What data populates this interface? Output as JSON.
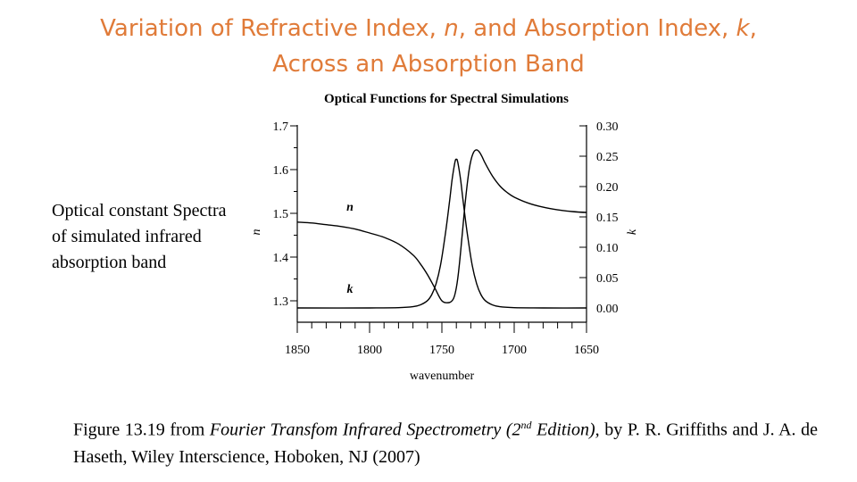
{
  "slide": {
    "title_line1_pre": "Variation of Refractive Index, ",
    "title_n": "n",
    "title_line1_mid": ", and Absorption Index, ",
    "title_k": "k",
    "title_line1_post": ",",
    "title_line2": "Across an Absorption Band",
    "side_note": "Optical constant Spectra of simulated infrared absorption band",
    "caption_pre": "Figure 13.19 from ",
    "caption_book": "Fourier Transfom Infrared Spectrometry (2",
    "caption_sup": "nd",
    "caption_book_post": " Edition),",
    "caption_post": " by P. R. Griffiths and J. A. de Haseth, Wiley Interscience, Hoboken, NJ (2007)"
  },
  "chart_data": {
    "type": "line",
    "title": "Optical Functions for Spectral Simulations",
    "xlabel": "wavenumber",
    "ylabel_left": "n",
    "ylabel_right": "k",
    "xlim": [
      1850,
      1650
    ],
    "ylim_left": [
      1.28,
      1.7
    ],
    "ylim_right": [
      0.0,
      0.3
    ],
    "x_ticks": [
      1850,
      1800,
      1750,
      1700,
      1650
    ],
    "x_tick_labels": [
      "1850",
      "1800",
      "1750",
      "1700",
      "1650"
    ],
    "y_left_ticks": [
      1.3,
      1.4,
      1.5,
      1.6,
      1.7
    ],
    "y_left_tick_labels": [
      "1.3",
      "1.4",
      "1.5",
      "1.6",
      "1.7"
    ],
    "y_right_ticks": [
      0.0,
      0.05,
      0.1,
      0.15,
      0.2,
      0.25,
      0.3
    ],
    "y_right_tick_labels": [
      "0.00",
      "0.05",
      "0.10",
      "0.15",
      "0.20",
      "0.25",
      "0.30"
    ],
    "grid": false,
    "series": [
      {
        "name": "n",
        "axis": "left",
        "x": [
          1850,
          1840,
          1830,
          1820,
          1810,
          1800,
          1790,
          1780,
          1770,
          1765,
          1760,
          1755,
          1750,
          1745,
          1742,
          1740,
          1738,
          1736,
          1734,
          1732,
          1730,
          1728,
          1726,
          1724,
          1722,
          1720,
          1715,
          1710,
          1705,
          1700,
          1690,
          1680,
          1670,
          1660,
          1650
        ],
        "y": [
          1.48,
          1.478,
          1.474,
          1.47,
          1.464,
          1.455,
          1.445,
          1.43,
          1.405,
          1.385,
          1.36,
          1.33,
          1.3,
          1.296,
          1.305,
          1.33,
          1.38,
          1.45,
          1.52,
          1.58,
          1.62,
          1.64,
          1.645,
          1.64,
          1.628,
          1.614,
          1.585,
          1.563,
          1.548,
          1.537,
          1.523,
          1.514,
          1.508,
          1.504,
          1.502
        ]
      },
      {
        "name": "k",
        "axis": "right",
        "x": [
          1850,
          1800,
          1780,
          1770,
          1765,
          1760,
          1757,
          1754,
          1751,
          1748,
          1745,
          1743,
          1741,
          1740,
          1739,
          1737,
          1735,
          1732,
          1729,
          1726,
          1723,
          1720,
          1715,
          1710,
          1700,
          1680,
          1650
        ],
        "y": [
          0.0,
          0.0,
          0.0005,
          0.002,
          0.005,
          0.012,
          0.022,
          0.04,
          0.07,
          0.115,
          0.17,
          0.21,
          0.24,
          0.245,
          0.24,
          0.21,
          0.17,
          0.115,
          0.07,
          0.04,
          0.022,
          0.012,
          0.005,
          0.002,
          0.0005,
          0.0,
          0.0
        ]
      }
    ],
    "curve_labels": [
      {
        "text": "n",
        "series": "n"
      },
      {
        "text": "k",
        "series": "k"
      }
    ]
  }
}
